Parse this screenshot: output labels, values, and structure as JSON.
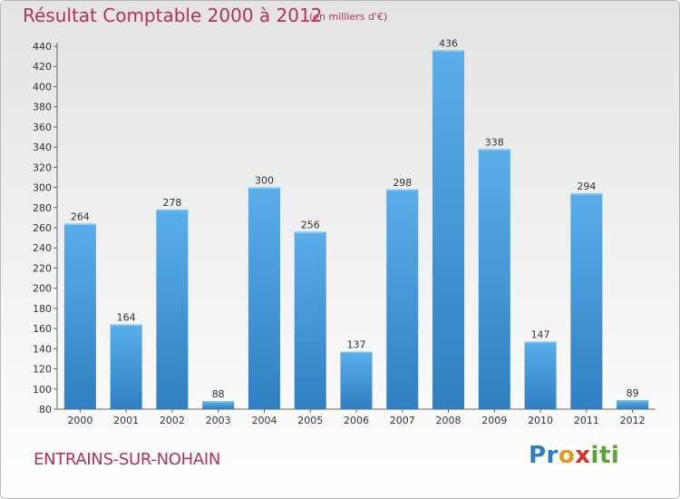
{
  "chart_data": {
    "type": "bar",
    "title": "Résultat Comptable 2000 à 2012",
    "subtitle": "(en milliers d'€)",
    "categories": [
      "2000",
      "2001",
      "2002",
      "2003",
      "2004",
      "2005",
      "2006",
      "2007",
      "2008",
      "2009",
      "2010",
      "2011",
      "2012"
    ],
    "values": [
      264,
      164,
      278,
      88,
      300,
      256,
      137,
      298,
      436,
      338,
      147,
      294,
      89
    ],
    "ylim": [
      80,
      440
    ],
    "yticks": [
      80,
      100,
      120,
      140,
      160,
      180,
      200,
      220,
      240,
      260,
      280,
      300,
      320,
      340,
      360,
      380,
      400,
      420,
      440
    ],
    "grid": false,
    "xlabel": "",
    "ylabel": ""
  },
  "commune": "ENTRAINS-SUR-NOHAIN",
  "logo": {
    "p1": "Pr",
    "p2": "o",
    "p3": "x",
    "p4": "iti"
  },
  "colors": {
    "bar": "#3d8fd6",
    "bar_light": "#5aaeea",
    "title": "#b5305a"
  }
}
